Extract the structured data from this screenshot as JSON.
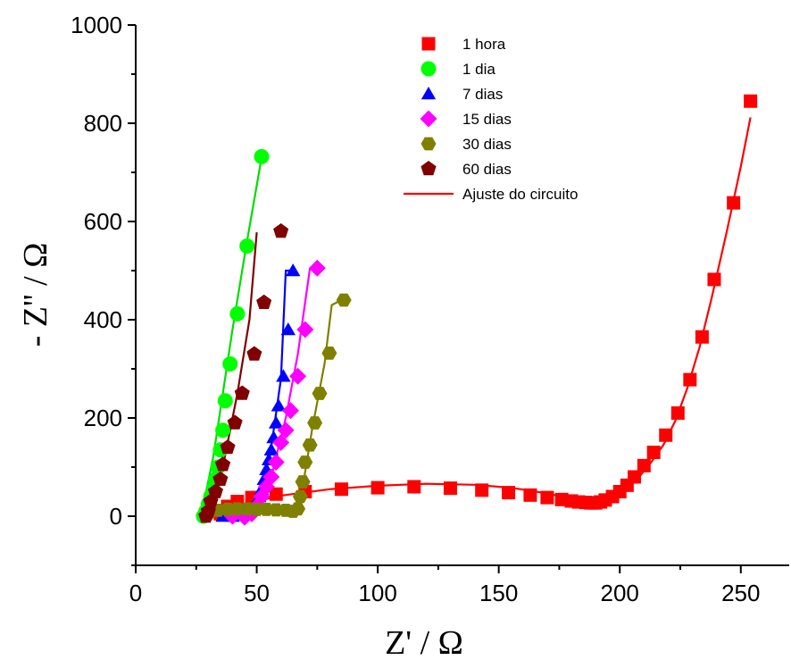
{
  "chart_data": {
    "type": "scatter",
    "xlabel": "Z' / Ω",
    "ylabel": "- Z'' / Ω",
    "xlim": [
      0,
      270
    ],
    "ylim": [
      -100,
      1000
    ],
    "xticks": [
      0,
      50,
      100,
      150,
      200,
      250
    ],
    "yticks": [
      0,
      200,
      400,
      600,
      800,
      1000
    ],
    "x_tick_labels": [
      "0",
      "50",
      "100",
      "150",
      "200",
      "250"
    ],
    "y_tick_labels": [
      "0",
      "200",
      "400",
      "600",
      "800",
      "1000"
    ],
    "grid": false,
    "legend_position": "top-right",
    "series": [
      {
        "name": "1 hora",
        "color": "#ff0000",
        "marker": "square",
        "points": [
          [
            35,
            5
          ],
          [
            38,
            20
          ],
          [
            42,
            30
          ],
          [
            48,
            38
          ],
          [
            58,
            45
          ],
          [
            70,
            50
          ],
          [
            85,
            55
          ],
          [
            100,
            58
          ],
          [
            115,
            60
          ],
          [
            130,
            57
          ],
          [
            143,
            53
          ],
          [
            154,
            48
          ],
          [
            163,
            43
          ],
          [
            170,
            38
          ],
          [
            176,
            34
          ],
          [
            180,
            31
          ],
          [
            183,
            29
          ],
          [
            186,
            28
          ],
          [
            188,
            27
          ],
          [
            190,
            27
          ],
          [
            192,
            29
          ],
          [
            194,
            33
          ],
          [
            197,
            40
          ],
          [
            200,
            50
          ],
          [
            203,
            63
          ],
          [
            206,
            80
          ],
          [
            210,
            103
          ],
          [
            214,
            130
          ],
          [
            219,
            165
          ],
          [
            224,
            210
          ],
          [
            229,
            278
          ],
          [
            234,
            365
          ],
          [
            239,
            482
          ],
          [
            247,
            638
          ],
          [
            254,
            845
          ]
        ]
      },
      {
        "name": "1 dia",
        "color": "#00ff00",
        "marker": "circle",
        "points": [
          [
            28,
            0
          ],
          [
            29,
            10
          ],
          [
            30,
            25
          ],
          [
            31,
            40
          ],
          [
            32,
            55
          ],
          [
            33,
            75
          ],
          [
            34,
            100
          ],
          [
            35,
            135
          ],
          [
            36,
            175
          ],
          [
            37,
            235
          ],
          [
            39,
            310
          ],
          [
            42,
            412
          ],
          [
            46,
            550
          ],
          [
            52,
            732
          ]
        ]
      },
      {
        "name": "7 dias",
        "color": "#0000ff",
        "marker": "triangle",
        "points": [
          [
            36,
            0
          ],
          [
            40,
            0
          ],
          [
            45,
            3
          ],
          [
            48,
            12
          ],
          [
            50,
            25
          ],
          [
            51,
            40
          ],
          [
            52,
            55
          ],
          [
            53,
            75
          ],
          [
            54,
            95
          ],
          [
            55,
            115
          ],
          [
            56,
            135
          ],
          [
            57,
            160
          ],
          [
            58,
            190
          ],
          [
            59,
            225
          ],
          [
            61,
            285
          ],
          [
            63,
            380
          ],
          [
            65,
            500
          ]
        ]
      },
      {
        "name": "15 dias",
        "color": "#ff00ff",
        "marker": "diamond",
        "points": [
          [
            40,
            0
          ],
          [
            45,
            -2
          ],
          [
            48,
            5
          ],
          [
            50,
            20
          ],
          [
            52,
            40
          ],
          [
            54,
            60
          ],
          [
            56,
            80
          ],
          [
            58,
            110
          ],
          [
            60,
            150
          ],
          [
            62,
            175
          ],
          [
            64,
            215
          ],
          [
            67,
            285
          ],
          [
            70,
            380
          ],
          [
            75,
            505
          ]
        ]
      },
      {
        "name": "30 dias",
        "color": "#808000",
        "marker": "hexagon",
        "points": [
          [
            30,
            5
          ],
          [
            34,
            12
          ],
          [
            38,
            14
          ],
          [
            42,
            15
          ],
          [
            46,
            15
          ],
          [
            50,
            14
          ],
          [
            54,
            14
          ],
          [
            58,
            13
          ],
          [
            62,
            12
          ],
          [
            65,
            10
          ],
          [
            67,
            15
          ],
          [
            68,
            40
          ],
          [
            69,
            70
          ],
          [
            70,
            110
          ],
          [
            72,
            145
          ],
          [
            74,
            190
          ],
          [
            76,
            250
          ],
          [
            80,
            332
          ],
          [
            86,
            440
          ]
        ]
      },
      {
        "name": "60 dias",
        "color": "#800000",
        "marker": "pentagon",
        "points": [
          [
            29,
            0
          ],
          [
            30,
            10
          ],
          [
            31,
            30
          ],
          [
            33,
            50
          ],
          [
            35,
            75
          ],
          [
            36,
            105
          ],
          [
            38,
            140
          ],
          [
            41,
            190
          ],
          [
            44,
            250
          ],
          [
            49,
            330
          ],
          [
            53,
            435
          ],
          [
            60,
            580
          ]
        ]
      }
    ],
    "fit_lines": [
      {
        "name": "Ajuste do circuito",
        "color": "#ff0000",
        "points": [
          [
            33,
            0
          ],
          [
            45,
            25
          ],
          [
            60,
            42
          ],
          [
            80,
            55
          ],
          [
            100,
            62
          ],
          [
            120,
            66
          ],
          [
            140,
            64
          ],
          [
            155,
            58
          ],
          [
            168,
            48
          ],
          [
            178,
            38
          ],
          [
            186,
            32
          ],
          [
            192,
            32
          ],
          [
            198,
            42
          ],
          [
            203,
            57
          ],
          [
            208,
            80
          ],
          [
            213,
            110
          ],
          [
            218,
            145
          ],
          [
            223,
            195
          ],
          [
            228,
            262
          ],
          [
            233,
            345
          ],
          [
            238,
            445
          ],
          [
            244,
            575
          ],
          [
            250,
            712
          ],
          [
            254,
            812
          ]
        ]
      },
      {
        "name": "",
        "color": "#00dd00",
        "points": [
          [
            27,
            0
          ],
          [
            32,
            120
          ],
          [
            40,
            380
          ],
          [
            46,
            560
          ],
          [
            52,
            730
          ]
        ]
      },
      {
        "name": "",
        "color": "#0000ff",
        "points": [
          [
            36,
            0
          ],
          [
            46,
            5
          ],
          [
            52,
            50
          ],
          [
            56,
            140
          ],
          [
            60,
            280
          ],
          [
            62,
            500
          ],
          [
            66,
            500
          ]
        ]
      },
      {
        "name": "",
        "color": "#ff00ff",
        "points": [
          [
            40,
            0
          ],
          [
            50,
            10
          ],
          [
            56,
            80
          ],
          [
            62,
            200
          ],
          [
            67,
            330
          ],
          [
            72,
            505
          ]
        ]
      },
      {
        "name": "",
        "color": "#808000",
        "points": [
          [
            30,
            5
          ],
          [
            50,
            12
          ],
          [
            66,
            10
          ],
          [
            69,
            60
          ],
          [
            73,
            180
          ],
          [
            78,
            310
          ],
          [
            81,
            430
          ],
          [
            85,
            440
          ]
        ]
      },
      {
        "name": "",
        "color": "#800000",
        "points": [
          [
            29,
            0
          ],
          [
            36,
            100
          ],
          [
            42,
            250
          ],
          [
            47,
            400
          ],
          [
            50,
            578
          ]
        ]
      }
    ]
  }
}
